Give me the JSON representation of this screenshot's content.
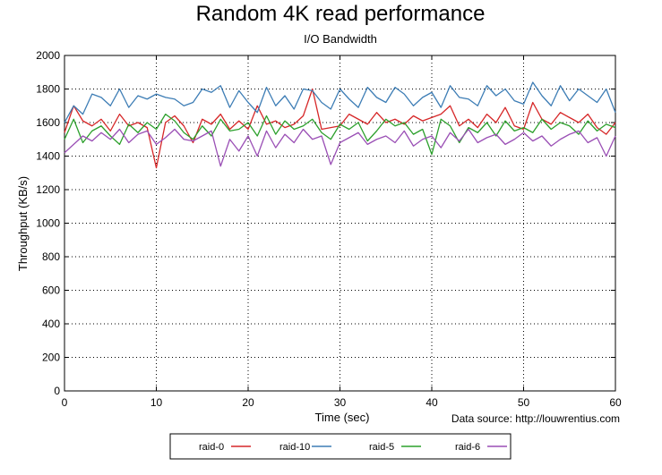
{
  "chart_data": {
    "type": "line",
    "title": "Random 4K read performance",
    "subtitle": "I/O Bandwidth",
    "xlabel": "Time (sec)",
    "ylabel": "Throughput (KB/s)",
    "xlim": [
      0,
      60
    ],
    "ylim": [
      0,
      2000
    ],
    "xticks": [
      0,
      10,
      20,
      30,
      40,
      50,
      60
    ],
    "yticks": [
      0,
      200,
      400,
      600,
      800,
      1000,
      1200,
      1400,
      1600,
      1800,
      2000
    ],
    "grid": true,
    "legend_position": "bottom",
    "source_note": "Data source: http://louwrentius.com",
    "x": [
      0,
      1,
      2,
      3,
      4,
      5,
      6,
      7,
      8,
      9,
      10,
      11,
      12,
      13,
      14,
      15,
      16,
      17,
      18,
      19,
      20,
      21,
      22,
      23,
      24,
      25,
      26,
      27,
      28,
      29,
      30,
      31,
      32,
      33,
      34,
      35,
      36,
      37,
      38,
      39,
      40,
      41,
      42,
      43,
      44,
      45,
      46,
      47,
      48,
      49,
      50,
      51,
      52,
      53,
      54,
      55,
      56,
      57,
      58,
      59,
      60
    ],
    "series": [
      {
        "name": "raid-0",
        "color": "#d62728",
        "values": [
          1540,
          1700,
          1610,
          1580,
          1620,
          1550,
          1650,
          1580,
          1600,
          1570,
          1330,
          1600,
          1640,
          1580,
          1480,
          1620,
          1590,
          1650,
          1560,
          1610,
          1560,
          1700,
          1590,
          1610,
          1570,
          1590,
          1640,
          1800,
          1560,
          1570,
          1580,
          1650,
          1620,
          1590,
          1660,
          1600,
          1620,
          1590,
          1640,
          1610,
          1630,
          1650,
          1700,
          1580,
          1620,
          1570,
          1650,
          1600,
          1690,
          1580,
          1560,
          1720,
          1620,
          1590,
          1660,
          1630,
          1600,
          1650,
          1570,
          1530,
          1600
        ]
      },
      {
        "name": "raid-10",
        "color": "#3d7db5",
        "values": [
          1600,
          1700,
          1650,
          1770,
          1750,
          1700,
          1800,
          1690,
          1760,
          1740,
          1770,
          1750,
          1740,
          1700,
          1720,
          1800,
          1780,
          1820,
          1690,
          1790,
          1720,
          1660,
          1810,
          1700,
          1760,
          1680,
          1800,
          1790,
          1720,
          1680,
          1800,
          1740,
          1690,
          1810,
          1750,
          1720,
          1810,
          1770,
          1700,
          1750,
          1780,
          1690,
          1820,
          1750,
          1740,
          1700,
          1820,
          1760,
          1800,
          1730,
          1710,
          1840,
          1760,
          1700,
          1820,
          1730,
          1800,
          1760,
          1720,
          1800,
          1660
        ]
      },
      {
        "name": "raid-5",
        "color": "#2ca02c",
        "values": [
          1500,
          1620,
          1480,
          1550,
          1580,
          1520,
          1470,
          1590,
          1540,
          1600,
          1560,
          1650,
          1610,
          1540,
          1500,
          1580,
          1520,
          1620,
          1550,
          1560,
          1600,
          1520,
          1640,
          1530,
          1610,
          1560,
          1580,
          1620,
          1540,
          1500,
          1590,
          1560,
          1600,
          1490,
          1550,
          1620,
          1580,
          1600,
          1530,
          1560,
          1410,
          1620,
          1580,
          1480,
          1570,
          1540,
          1600,
          1520,
          1610,
          1550,
          1570,
          1540,
          1620,
          1560,
          1600,
          1580,
          1530,
          1610,
          1550,
          1590,
          1570
        ]
      },
      {
        "name": "raid-6",
        "color": "#9a4fb5",
        "values": [
          1420,
          1470,
          1520,
          1490,
          1540,
          1500,
          1560,
          1480,
          1530,
          1550,
          1470,
          1510,
          1560,
          1500,
          1490,
          1520,
          1550,
          1340,
          1500,
          1430,
          1520,
          1400,
          1550,
          1450,
          1530,
          1480,
          1560,
          1500,
          1520,
          1350,
          1480,
          1510,
          1540,
          1470,
          1500,
          1520,
          1480,
          1550,
          1460,
          1500,
          1520,
          1450,
          1540,
          1490,
          1560,
          1480,
          1510,
          1530,
          1470,
          1500,
          1540,
          1490,
          1520,
          1460,
          1500,
          1530,
          1550,
          1480,
          1510,
          1400,
          1520
        ]
      }
    ]
  }
}
